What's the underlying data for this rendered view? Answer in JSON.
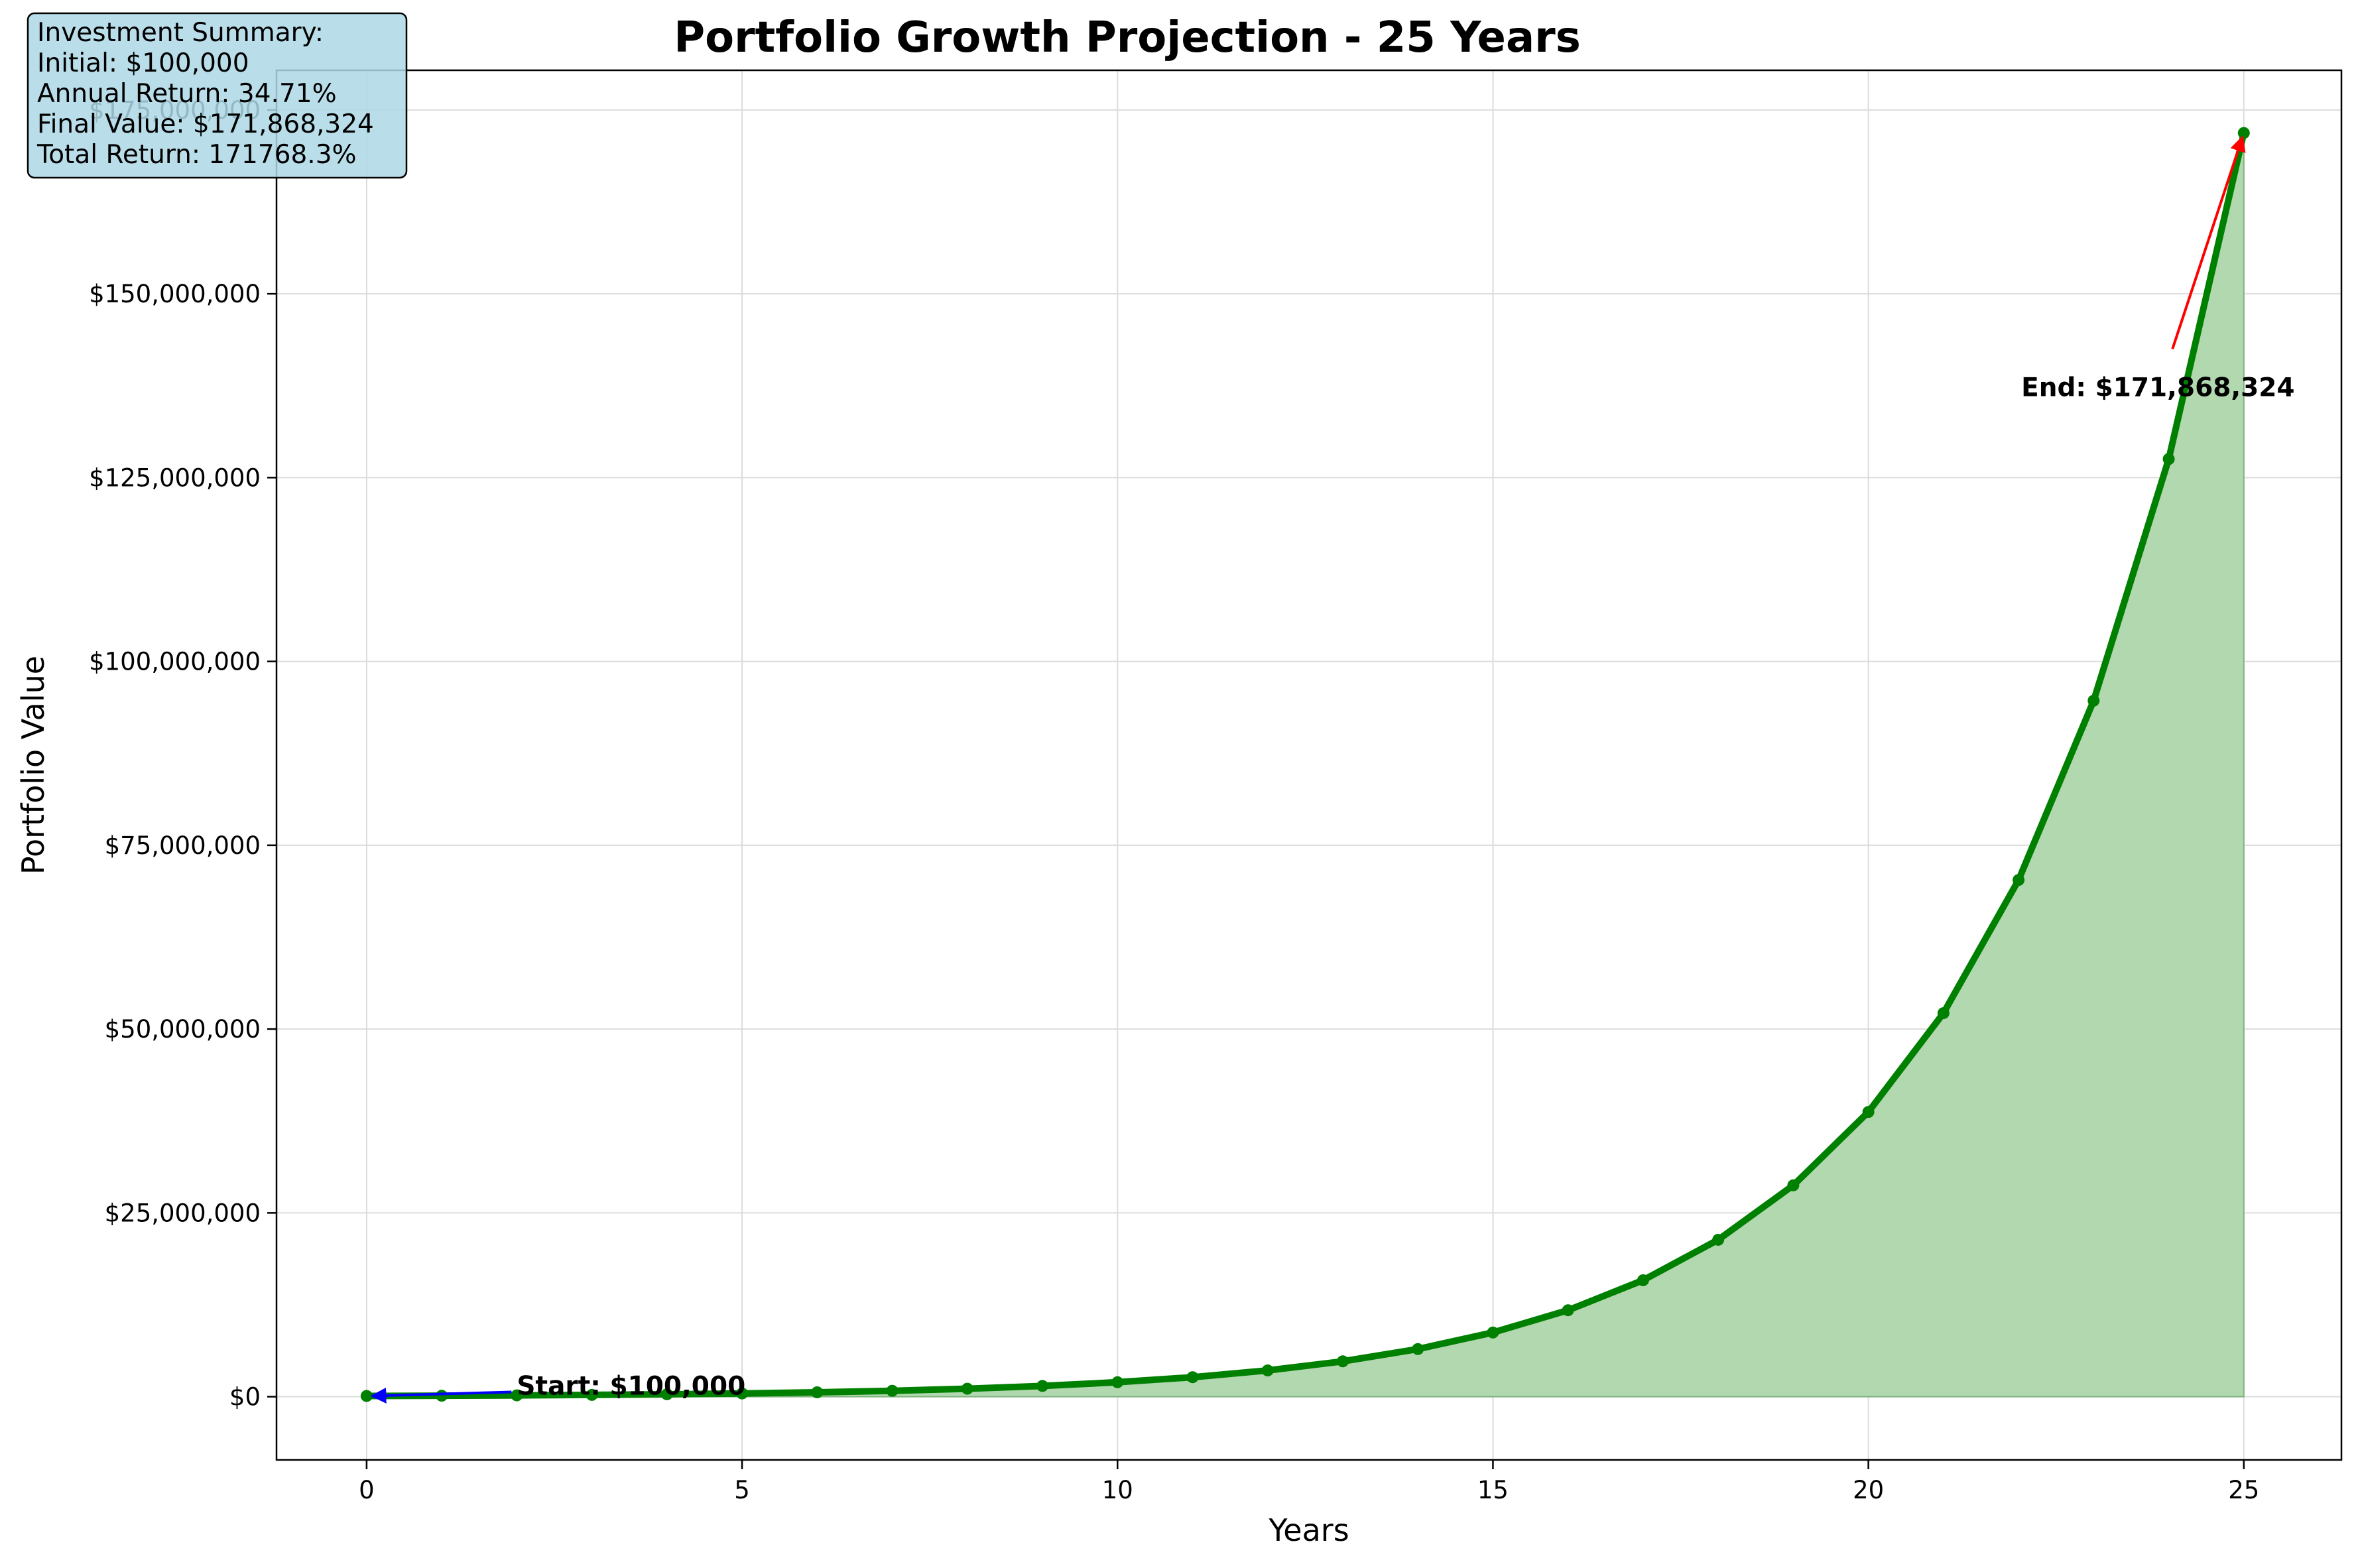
{
  "chart_data": {
    "type": "area",
    "title": "Portfolio Growth Projection - 25 Years",
    "xlabel": "Years",
    "ylabel": "Portfolio Value",
    "xlim": [
      -1.2,
      26.3
    ],
    "ylim": [
      -8600000,
      180400000
    ],
    "x_ticks": [
      0,
      5,
      10,
      15,
      20,
      25
    ],
    "x_tick_labels": [
      "0",
      "5",
      "10",
      "15",
      "20",
      "25"
    ],
    "y_ticks": [
      0,
      25000000,
      50000000,
      75000000,
      100000000,
      125000000,
      150000000,
      175000000
    ],
    "y_tick_labels": [
      "$0",
      "$25,000,000",
      "$50,000,000",
      "$75,000,000",
      "$100,000,000",
      "$125,000,000",
      "$150,000,000",
      "$175,000,000"
    ],
    "grid": true,
    "colors": {
      "line": "#008000",
      "fill": "#b2d8b0",
      "start_arrow": "#0000ff",
      "end_arrow": "#ff0000",
      "summary_box": "#add8e6"
    },
    "series": [
      {
        "x": [
          0,
          1,
          2,
          3,
          4,
          5,
          6,
          7,
          8,
          9,
          10,
          11,
          12,
          13,
          14,
          15,
          16,
          17,
          18,
          19,
          20,
          21,
          22,
          23,
          24,
          25
        ],
        "values": [
          100000,
          134710,
          181468,
          244456,
          329307,
          443610,
          597588,
          805012,
          1084432,
          1460838,
          1967895,
          2650941,
          3571083,
          4810606,
          6480367,
          8729702,
          11759782,
          15841603,
          21340224,
          28747315,
          38725507,
          52167131,
          70274243,
          94666432,
          127525150,
          171868324
        ]
      }
    ],
    "annotations": [
      {
        "text": "Start: $100,000",
        "x": 0,
        "y": 100000,
        "text_x": 2,
        "text_y": 1500000
      },
      {
        "text": "End: $171,868,324",
        "x": 25,
        "y": 171868324,
        "text_x": 22,
        "text_y": 137000000
      }
    ],
    "summary_box": {
      "lines": [
        "Investment Summary:",
        "Initial: $100,000",
        "Annual Return: 34.71%",
        "Final Value: $171,868,324",
        "Total Return: 171768.3%"
      ]
    }
  }
}
